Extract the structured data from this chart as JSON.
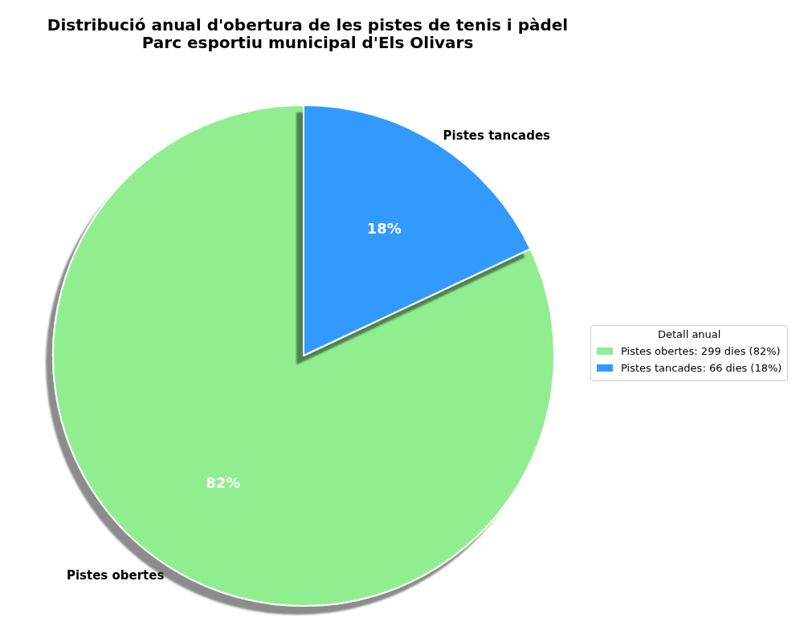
{
  "chart_data": {
    "type": "pie",
    "title": "Distribució anual d'obertura de les pistes de tenis i pàdel",
    "subtitle": "Parc esportiu municipal d'Els Olivars",
    "categories": [
      "Pistes obertes",
      "Pistes tancades"
    ],
    "values": [
      82,
      18
    ],
    "colors": [
      "#90ee90",
      "#3399ff"
    ],
    "value_labels": [
      "82%",
      "18%"
    ],
    "legend_title": "Detall anual",
    "annotations": [
      "Pistes obertes: 299 dies (82%)",
      "Pistes tancades: 66 dies (18%)"
    ]
  }
}
